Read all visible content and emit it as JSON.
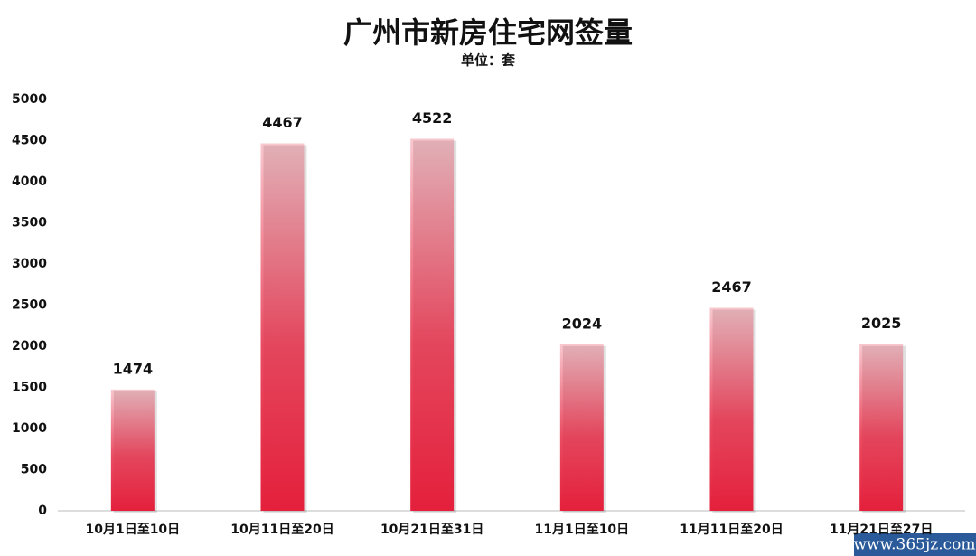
{
  "chart_data": {
    "type": "bar",
    "title": "广州市新房住宅网签量",
    "subtitle": "单位：套",
    "categories": [
      "10月1日至10日",
      "10月11日至20日",
      "10月21日至31日",
      "11月1日至10日",
      "11月11日至20日",
      "11月21日至27日"
    ],
    "values": [
      1474,
      4467,
      4522,
      2024,
      2467,
      2025
    ],
    "color": "#e4203c",
    "ylim": [
      0,
      5000
    ],
    "yticks": [
      0,
      500,
      1000,
      1500,
      2000,
      2500,
      3000,
      3500,
      4000,
      4500,
      5000
    ],
    "grid": false
  },
  "watermark": "www.365jz.com"
}
